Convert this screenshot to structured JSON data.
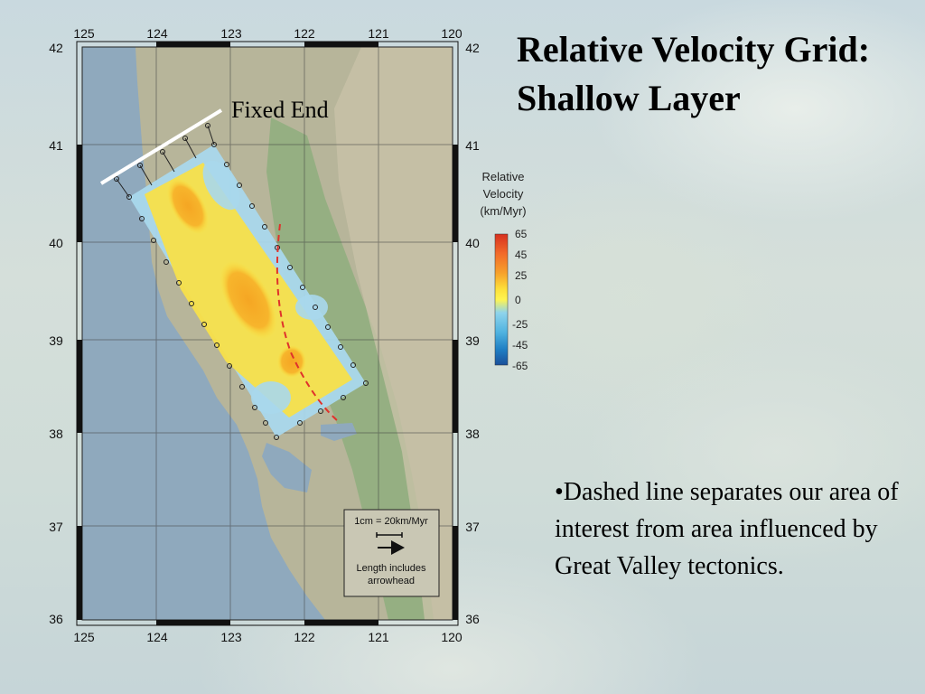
{
  "slide": {
    "title": "Relative Velocity Grid: Shallow Layer",
    "bullet": "•Dashed line separates our area of interest from area influenced by Great Valley tectonics."
  },
  "map": {
    "top_lon_labels": [
      "125",
      "124",
      "123",
      "122",
      "121",
      "120"
    ],
    "bottom_lon_labels": [
      "125",
      "124",
      "123",
      "122",
      "121",
      "120"
    ],
    "left_lat_labels": [
      "42",
      "41",
      "40",
      "39",
      "38",
      "37",
      "36"
    ],
    "right_lat_labels": [
      "42",
      "41",
      "40",
      "39",
      "38",
      "37",
      "36"
    ],
    "fixed_end_label": "Fixed End",
    "colorbar": {
      "title_lines": [
        "Relative",
        "Velocity",
        "(km/Myr)"
      ],
      "tick_labels": [
        "65",
        "45",
        "25",
        "0",
        "-25",
        "-45",
        "-65"
      ],
      "colors": [
        "#d7301f",
        "#f26b2a",
        "#f7a22b",
        "#fde03a",
        "#fff44f",
        "#8fd4ec",
        "#4fb3e0",
        "#1f7fc4",
        "#1a4f9a"
      ]
    },
    "scale_box": {
      "scale_text": "1cm = 20km/Myr",
      "note_lines": [
        "Length includes",
        "arrowhead"
      ]
    },
    "colors": {
      "ocean": "#8fa9bd",
      "grid_fill_cool": "#a9d8ec",
      "grid_fill_warm": "#f7e04a",
      "hot_spot": "#f5a623",
      "dashed_line": "#e0322b"
    }
  }
}
